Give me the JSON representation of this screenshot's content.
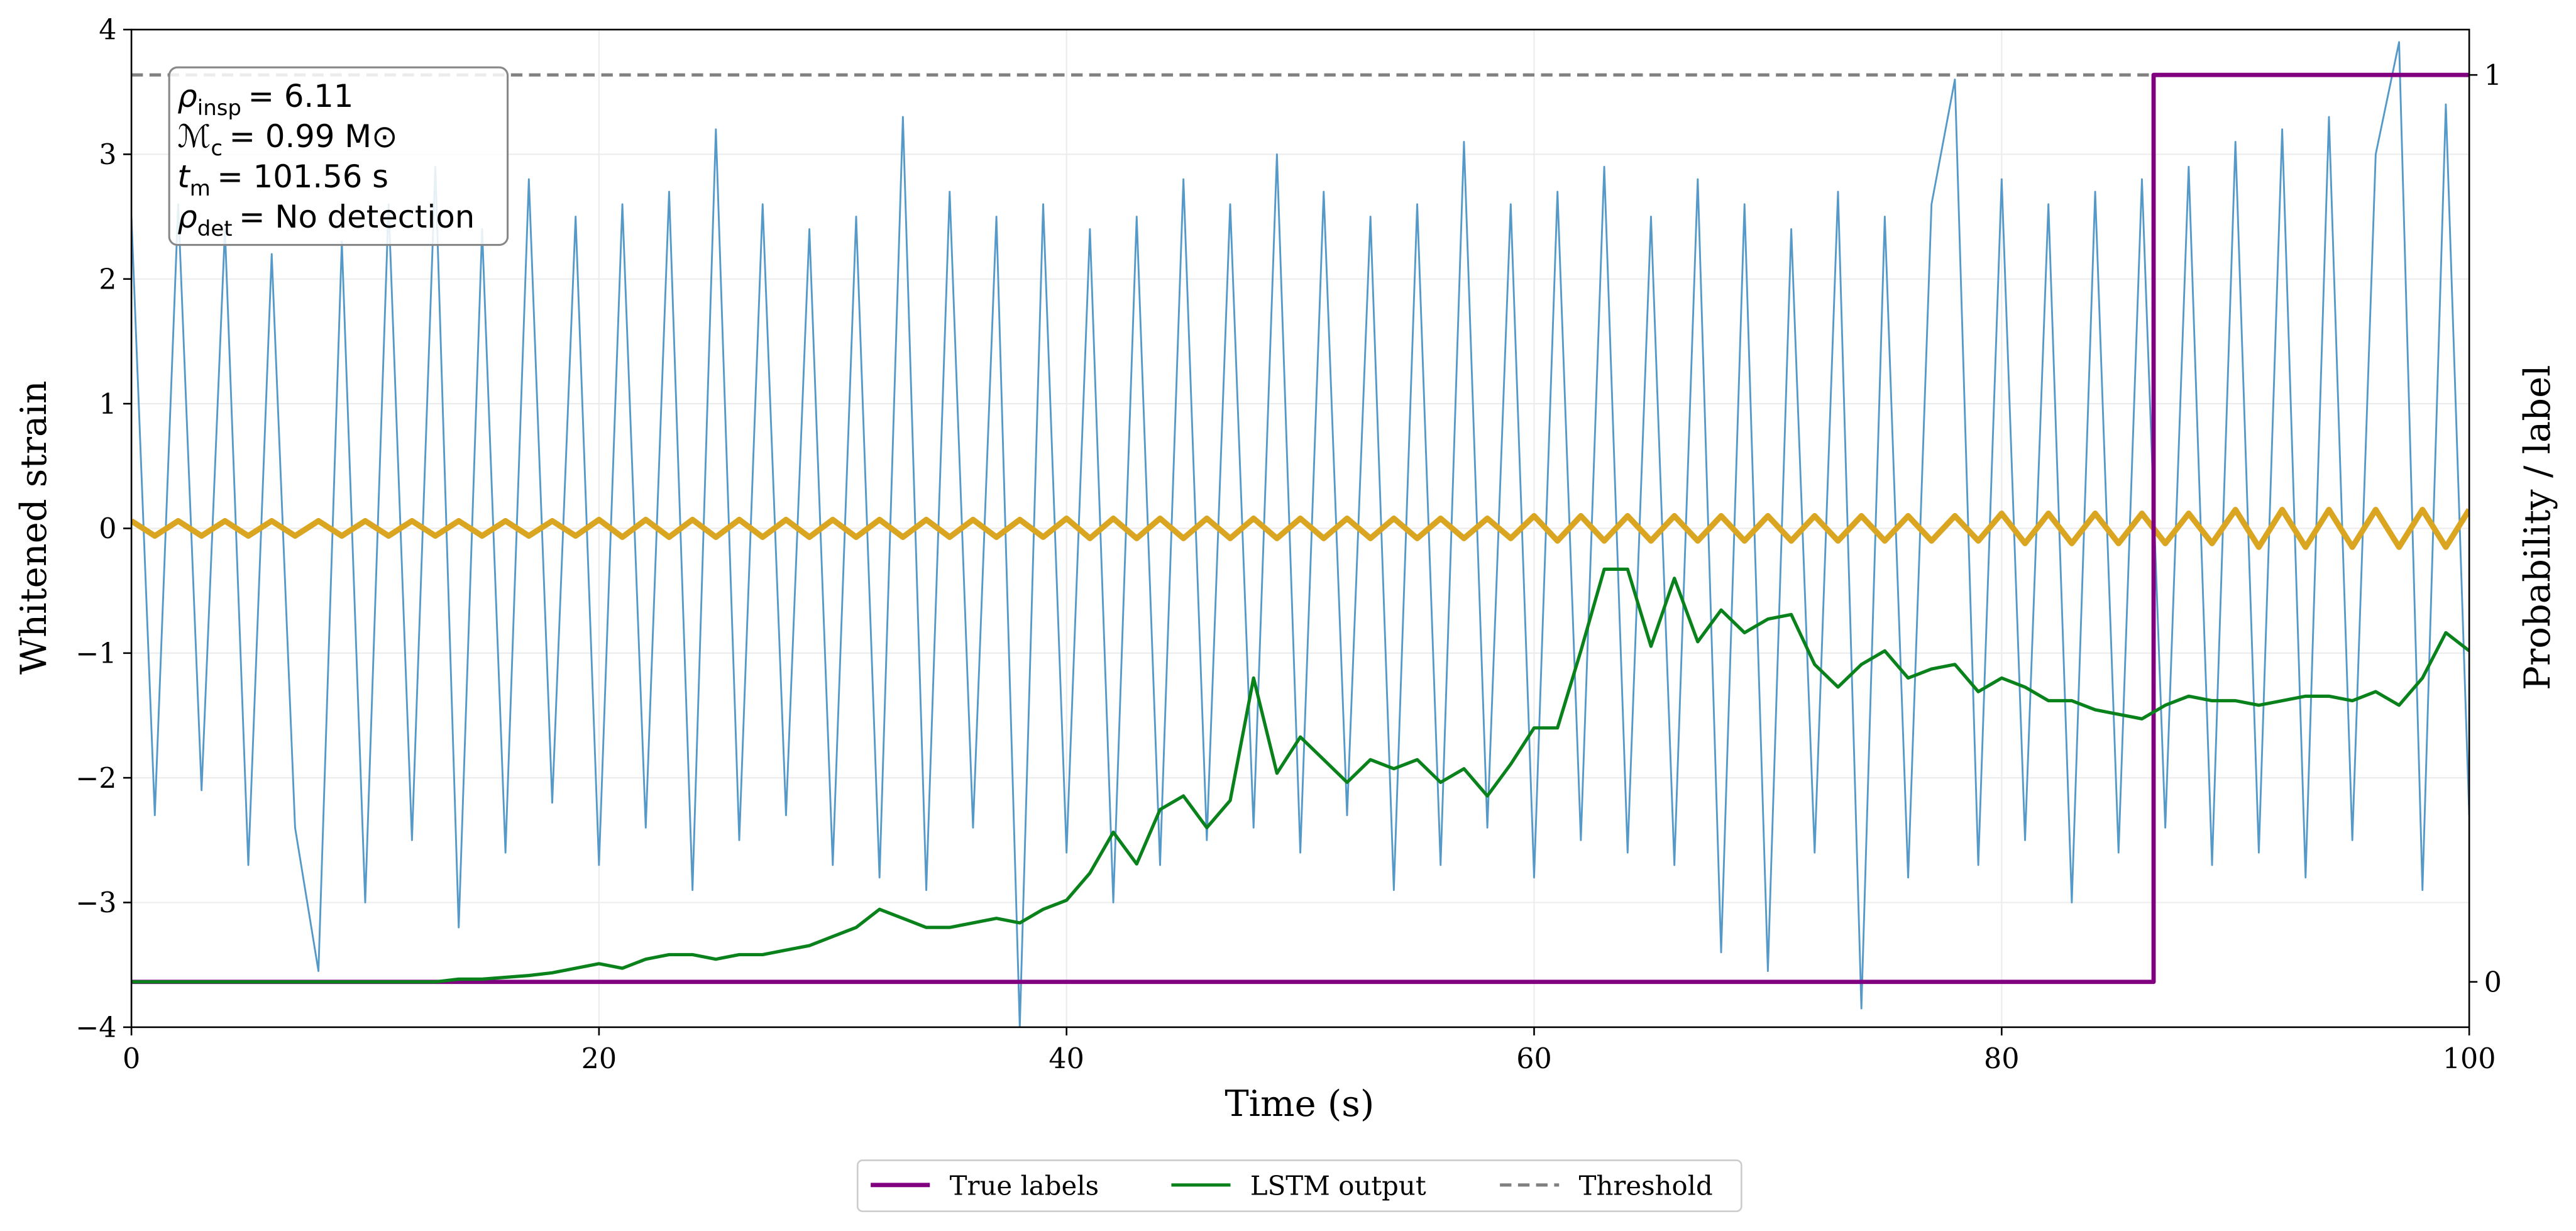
{
  "chart_data": {
    "type": "line",
    "xlabel": "Time (s)",
    "ylabel": "Whitened strain",
    "y2label": "Probability / label",
    "xlim": [
      0,
      100
    ],
    "xticks": [
      0,
      20,
      40,
      60,
      80,
      100
    ],
    "ylim": [
      -4,
      4
    ],
    "yticks": [
      {
        "value": -4,
        "label": "−4"
      },
      {
        "value": -3,
        "label": "−3"
      },
      {
        "value": -2,
        "label": "−2"
      },
      {
        "value": -1,
        "label": "−1"
      },
      0,
      1,
      2,
      3,
      4
    ],
    "y2lim": [
      -0.05,
      1.05
    ],
    "y2ticks": [
      0,
      1
    ],
    "grid": true,
    "legend": "bottom",
    "x": [
      0,
      1,
      2,
      3,
      4,
      5,
      6,
      7,
      8,
      9,
      10,
      11,
      12,
      13,
      14,
      15,
      16,
      17,
      18,
      19,
      20,
      21,
      22,
      23,
      24,
      25,
      26,
      27,
      28,
      29,
      30,
      31,
      32,
      33,
      34,
      35,
      36,
      37,
      38,
      39,
      40,
      41,
      42,
      43,
      44,
      45,
      46,
      47,
      48,
      49,
      50,
      51,
      52,
      53,
      54,
      55,
      56,
      57,
      58,
      59,
      60,
      61,
      62,
      63,
      64,
      65,
      66,
      67,
      68,
      69,
      70,
      71,
      72,
      73,
      74,
      75,
      76,
      77,
      78,
      79,
      80,
      81,
      82,
      83,
      84,
      85,
      86,
      87,
      88,
      89,
      90,
      91,
      92,
      93,
      94,
      95,
      96,
      97,
      98,
      99,
      100
    ],
    "series": [
      {
        "color": "#5599c8",
        "values": [
          2.5,
          -2.3,
          2.6,
          -2.1,
          2.4,
          -2.7,
          2.2,
          -2.4,
          -3.55,
          2.3,
          -3.0,
          2.6,
          -2.5,
          2.9,
          -3.2,
          2.4,
          -2.6,
          2.8,
          -2.2,
          2.5,
          -2.7,
          2.6,
          -2.4,
          2.7,
          -2.9,
          3.2,
          -2.5,
          2.6,
          -2.3,
          2.4,
          -2.7,
          2.5,
          -2.8,
          3.3,
          -2.9,
          2.7,
          -2.4,
          2.5,
          -4.0,
          2.6,
          -2.6,
          2.4,
          -3.0,
          2.5,
          -2.7,
          2.8,
          -2.5,
          2.6,
          -2.4,
          3.0,
          -2.6,
          2.7,
          -2.3,
          2.5,
          -2.9,
          2.6,
          -2.7,
          3.1,
          -2.4,
          2.6,
          -2.8,
          2.7,
          -2.5,
          2.9,
          -2.6,
          2.5,
          -2.7,
          2.8,
          -3.4,
          2.6,
          -3.55,
          2.4,
          -2.6,
          2.7,
          -3.85,
          2.5,
          -2.8,
          2.6,
          3.6,
          -2.7,
          2.8,
          -2.5,
          2.6,
          -3.0,
          2.7,
          -2.6,
          2.8,
          -2.4,
          2.9,
          -2.7,
          3.1,
          -2.6,
          3.2,
          -2.8,
          3.3,
          -2.5,
          3.0,
          3.9,
          -2.9,
          3.4,
          -2.3
        ]
      },
      {
        "color": "#daa520",
        "values": [
          0.06,
          -0.06,
          0.06,
          -0.06,
          0.06,
          -0.06,
          0.06,
          -0.06,
          0.06,
          -0.06,
          0.06,
          -0.06,
          0.06,
          -0.06,
          0.06,
          -0.06,
          0.06,
          -0.06,
          0.06,
          -0.06,
          0.07,
          -0.07,
          0.07,
          -0.07,
          0.07,
          -0.07,
          0.07,
          -0.07,
          0.07,
          -0.07,
          0.07,
          -0.07,
          0.07,
          -0.07,
          0.07,
          -0.07,
          0.07,
          -0.07,
          0.07,
          -0.07,
          0.08,
          -0.08,
          0.08,
          -0.08,
          0.08,
          -0.08,
          0.08,
          -0.08,
          0.08,
          -0.08,
          0.08,
          -0.08,
          0.08,
          -0.08,
          0.08,
          -0.08,
          0.08,
          -0.08,
          0.08,
          -0.08,
          0.1,
          -0.1,
          0.1,
          -0.1,
          0.1,
          -0.1,
          0.1,
          -0.1,
          0.1,
          -0.1,
          0.1,
          -0.1,
          0.1,
          -0.1,
          0.1,
          -0.1,
          0.1,
          -0.1,
          0.1,
          -0.1,
          0.12,
          -0.12,
          0.12,
          -0.12,
          0.12,
          -0.12,
          0.12,
          -0.12,
          0.12,
          -0.12,
          0.15,
          -0.15,
          0.15,
          -0.15,
          0.15,
          -0.15,
          0.15,
          -0.15,
          0.15,
          -0.15,
          0.15
        ]
      },
      {
        "name": "True labels",
        "color": "#800080",
        "axis": "y2",
        "x": [
          0,
          86.5,
          86.5,
          100
        ],
        "values": [
          0,
          0,
          1,
          1
        ]
      },
      {
        "name": "LSTM output",
        "color": "#0a821c",
        "axis": "y2",
        "values": [
          0,
          0,
          0,
          0,
          0,
          0,
          0,
          0,
          0,
          0,
          0,
          0,
          0,
          0,
          0.003,
          0.003,
          0.005,
          0.007,
          0.01,
          0.015,
          0.02,
          0.015,
          0.025,
          0.03,
          0.03,
          0.025,
          0.03,
          0.03,
          0.035,
          0.04,
          0.05,
          0.06,
          0.08,
          0.07,
          0.06,
          0.06,
          0.065,
          0.07,
          0.065,
          0.08,
          0.09,
          0.12,
          0.165,
          0.13,
          0.19,
          0.205,
          0.17,
          0.2,
          0.335,
          0.23,
          0.27,
          0.245,
          0.22,
          0.245,
          0.235,
          0.245,
          0.22,
          0.235,
          0.205,
          0.24,
          0.28,
          0.28,
          0.365,
          0.455,
          0.455,
          0.37,
          0.445,
          0.375,
          0.41,
          0.385,
          0.4,
          0.405,
          0.35,
          0.325,
          0.35,
          0.365,
          0.335,
          0.345,
          0.35,
          0.32,
          0.335,
          0.325,
          0.31,
          0.31,
          0.3,
          0.295,
          0.29,
          0.305,
          0.315,
          0.31,
          0.31,
          0.305,
          0.31,
          0.315,
          0.315,
          0.31,
          0.32,
          0.305,
          0.335,
          0.385,
          0.365
        ]
      }
    ],
    "threshold": {
      "name": "Threshold",
      "value": 1,
      "color": "#808080"
    },
    "annotations": [
      {
        "symbol": "ρ",
        "sub": "insp",
        "text": "= 6.11"
      },
      {
        "symbol": "ℳ",
        "sub": "c",
        "text": "= 0.99 M⊙"
      },
      {
        "symbol": "t",
        "sub": "m",
        "text": "= 101.56 s"
      },
      {
        "symbol": "ρ",
        "sub": "det",
        "text": "= No detection"
      }
    ]
  }
}
